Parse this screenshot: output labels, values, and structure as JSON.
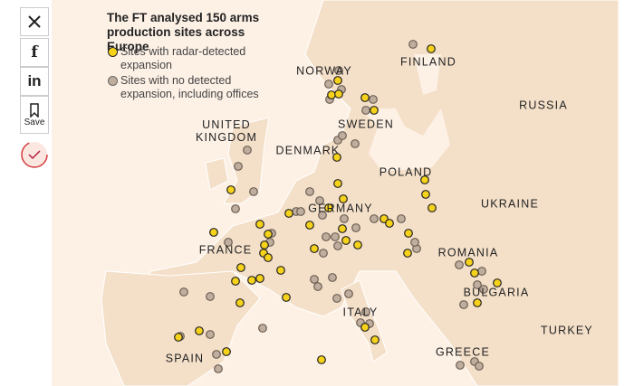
{
  "share": {
    "facebook": "f",
    "linkedin": "in",
    "save": "Save"
  },
  "map": {
    "title": "The FT analysed 150 arms production sites across Europe",
    "legend": [
      "Sites with radar-detected expansion",
      "Sites with no detected expansion, including offices"
    ],
    "countries": [
      "NORWAY",
      "FINLAND",
      "SWEDEN",
      "UNITED KINGDOM",
      "DENMARK",
      "POLAND",
      "RUSSIA",
      "UKRAINE",
      "GERMANY",
      "FRANCE",
      "ROMANIA",
      "BULGARIA",
      "ITALY",
      "TURKEY",
      "SPAIN",
      "GREECE"
    ]
  }
}
